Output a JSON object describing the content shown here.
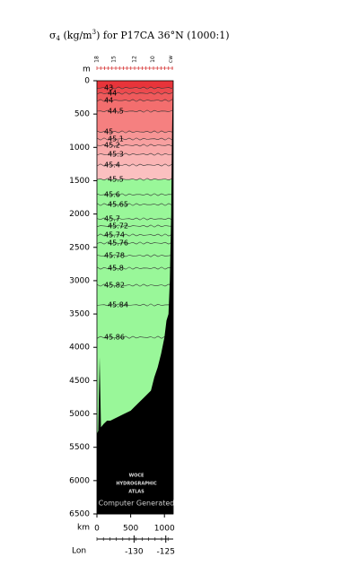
{
  "chart_data": {
    "type": "section",
    "title_parts": [
      "σ",
      "4",
      " (kg/m",
      "3",
      ") for P17CA 36°N (1000:1)"
    ],
    "y_label": "m",
    "x_label": "km",
    "lon_label": "Lon",
    "ylim": [
      0,
      6500
    ],
    "yticks": [
      0,
      500,
      1000,
      1500,
      2000,
      2500,
      3000,
      3500,
      4000,
      4500,
      5000,
      5500,
      6000,
      6500
    ],
    "xlim": [
      0,
      1130
    ],
    "xticks": [
      0,
      500,
      1000
    ],
    "lon_ticks": [
      {
        "km": 550,
        "value": -130,
        "label": "-130"
      },
      {
        "km": 1020,
        "value": -125,
        "label": "-125"
      }
    ],
    "stations": [
      {
        "km": 0,
        "label": "18"
      },
      {
        "km": 250,
        "label": "15"
      },
      {
        "km": 560,
        "label": "12"
      },
      {
        "km": 830,
        "label": "10"
      },
      {
        "km": 1100,
        "label": "cw"
      }
    ],
    "surface_color": "#e8343a",
    "contours": [
      {
        "label": "43",
        "depth": 108,
        "color": "#ec4a4e"
      },
      {
        "label": "44",
        "depth": 188,
        "color": "#ef5a5c"
      },
      {
        "label": "44",
        "depth": 296,
        "color": "#f36e6e"
      },
      {
        "label": "44.5",
        "depth": 458,
        "color": "#f58080"
      },
      {
        "label": "45",
        "depth": 767,
        "color": "#f79595"
      },
      {
        "label": "45.1",
        "depth": 875,
        "color": "#f8a0a0"
      },
      {
        "label": "45.2",
        "depth": 969,
        "color": "#f9aaaa"
      },
      {
        "label": "45.3",
        "depth": 1104,
        "color": "#fab5b5"
      },
      {
        "label": "45.4",
        "depth": 1265,
        "color": "#fbc0c0"
      },
      {
        "label": "45.5",
        "depth": 1480,
        "color": "#99f799"
      },
      {
        "label": "45.6",
        "depth": 1709,
        "color": "#99f799"
      },
      {
        "label": "45.65",
        "depth": 1857,
        "color": "#99f799"
      },
      {
        "label": "45.7",
        "depth": 2073,
        "color": "#99f799"
      },
      {
        "label": "45.72",
        "depth": 2180,
        "color": "#99f799"
      },
      {
        "label": "45.74",
        "depth": 2315,
        "color": "#99f799"
      },
      {
        "label": "45.76",
        "depth": 2436,
        "color": "#99f799"
      },
      {
        "label": "45.78",
        "depth": 2625,
        "color": "#99f799"
      },
      {
        "label": "45.8",
        "depth": 2813,
        "color": "#99f799"
      },
      {
        "label": "45.82",
        "depth": 3069,
        "color": "#99f799"
      },
      {
        "label": "45.84",
        "depth": 3365,
        "color": "#99f799"
      },
      {
        "label": "45.86",
        "depth": 3850,
        "color": "#99f799"
      }
    ],
    "bottom": {
      "color": "#000000",
      "km": [
        0,
        20,
        40,
        60,
        100,
        150,
        200,
        300,
        400,
        500,
        600,
        700,
        800,
        850,
        900,
        950,
        1000,
        1030,
        1060,
        1080,
        1100,
        1110,
        1120,
        1130
      ],
      "depth": [
        5300,
        5250,
        4150,
        5200,
        5150,
        5100,
        5100,
        5050,
        5000,
        4950,
        4850,
        4750,
        4650,
        4450,
        4300,
        4100,
        3850,
        3600,
        3500,
        3000,
        2000,
        1000,
        300,
        0
      ]
    },
    "logo": [
      "WOCE",
      "HYDROGRAPHIC",
      "ATLAS"
    ],
    "credit": "Computer Generated"
  }
}
